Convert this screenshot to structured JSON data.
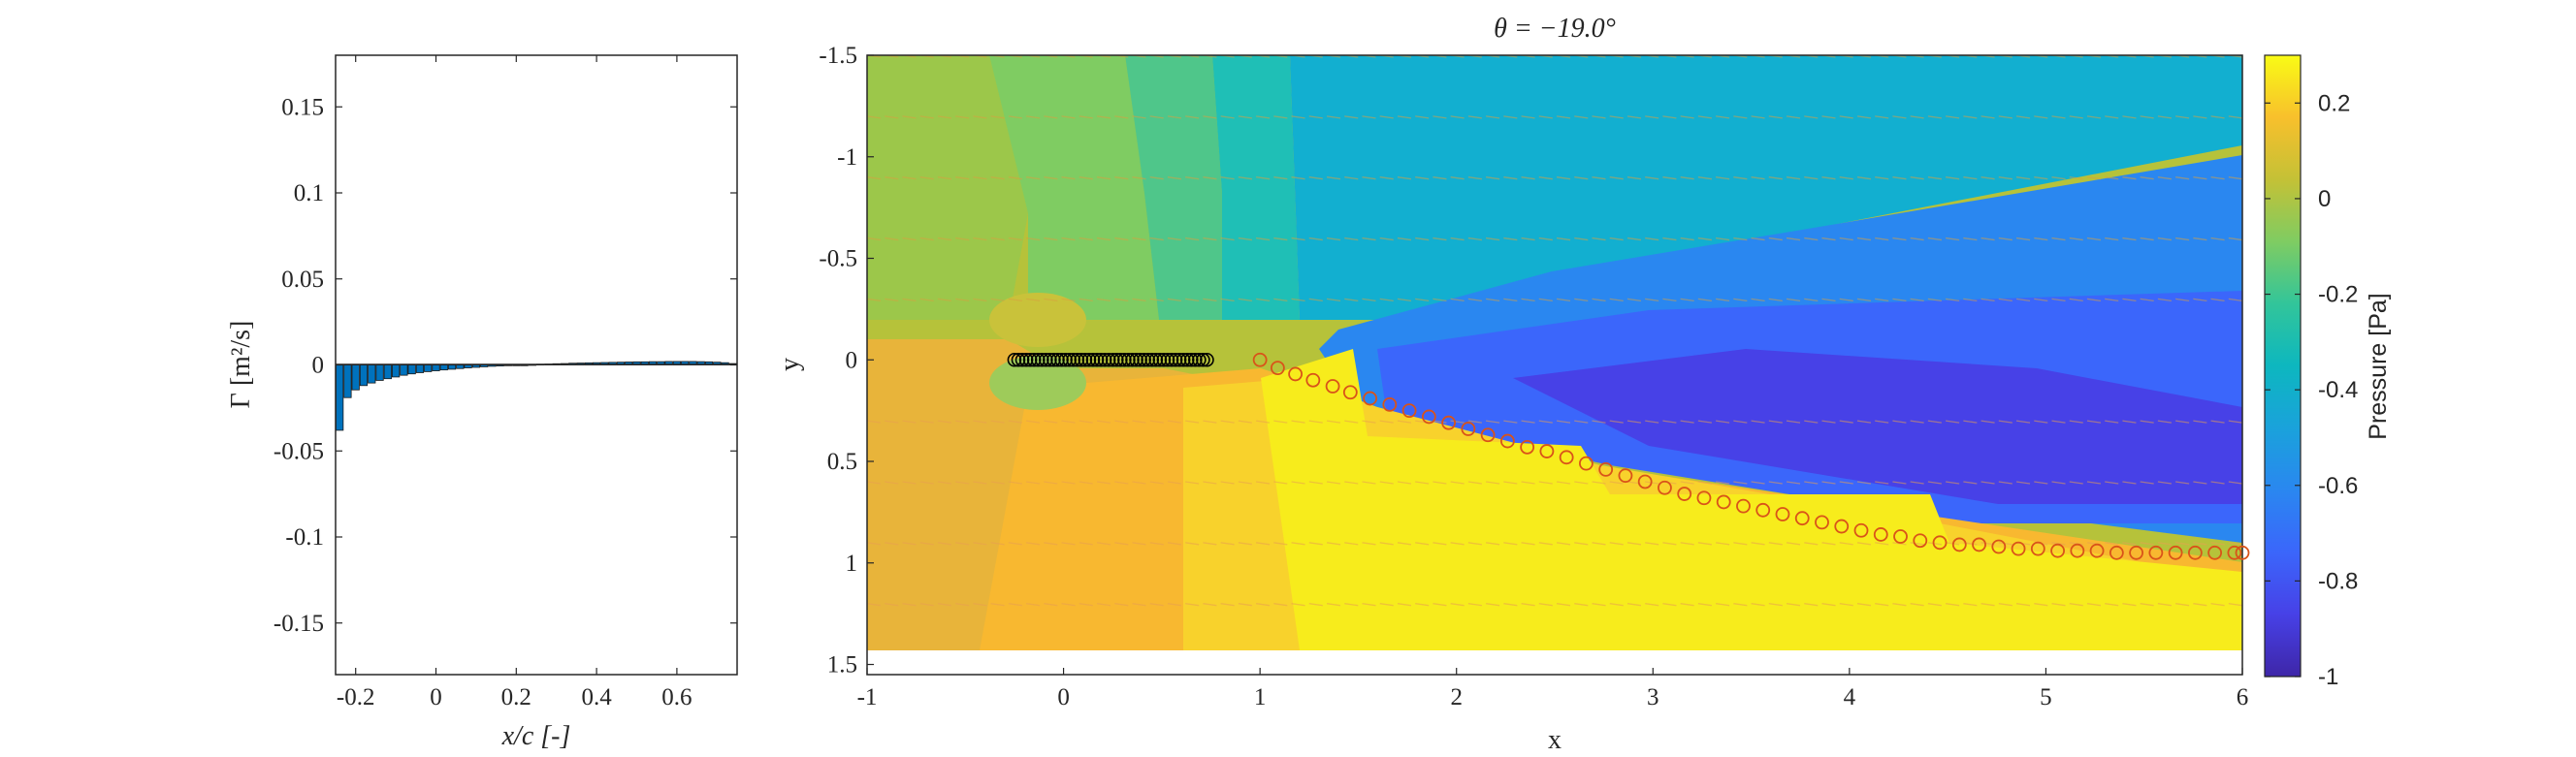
{
  "chart_data": [
    {
      "type": "bar",
      "xlabel": "x/c [-]",
      "ylabel": "Γ [m²/s]",
      "xlim": [
        -0.25,
        0.75
      ],
      "ylim": [
        -0.18,
        0.18
      ],
      "xticks": [
        "-0.2",
        "0",
        "0.2",
        "0.4",
        "0.6"
      ],
      "xtick_values": [
        -0.2,
        0,
        0.2,
        0.4,
        0.6
      ],
      "yticks": [
        "-0.15",
        "-0.1",
        "-0.05",
        "0",
        "0.05",
        "0.1",
        "0.15"
      ],
      "ytick_values": [
        -0.15,
        -0.1,
        -0.05,
        0,
        0.05,
        0.1,
        0.15
      ],
      "bar_color": "#0072BD",
      "x": [
        -0.24,
        -0.22,
        -0.2,
        -0.18,
        -0.16,
        -0.14,
        -0.12,
        -0.1,
        -0.08,
        -0.06,
        -0.04,
        -0.02,
        0.0,
        0.02,
        0.04,
        0.06,
        0.08,
        0.1,
        0.12,
        0.14,
        0.16,
        0.18,
        0.2,
        0.22,
        0.24,
        0.26,
        0.28,
        0.3,
        0.32,
        0.34,
        0.36,
        0.38,
        0.4,
        0.42,
        0.44,
        0.46,
        0.48,
        0.5,
        0.52,
        0.54,
        0.56,
        0.58,
        0.6,
        0.62,
        0.64,
        0.66,
        0.68,
        0.7,
        0.72,
        0.74
      ],
      "values": [
        -0.038,
        -0.019,
        -0.0145,
        -0.012,
        -0.0105,
        -0.009,
        -0.008,
        -0.007,
        -0.006,
        -0.0052,
        -0.0045,
        -0.0039,
        -0.0034,
        -0.0029,
        -0.0025,
        -0.0021,
        -0.0017,
        -0.0014,
        -0.0011,
        -0.0008,
        -0.0006,
        -0.0004,
        -0.0002,
        0.0,
        0.0002,
        0.0004,
        0.0005,
        0.0007,
        0.0008,
        0.001,
        0.0011,
        0.0012,
        0.0013,
        0.0014,
        0.0015,
        0.0016,
        0.0017,
        0.0018,
        0.0018,
        0.0019,
        0.0019,
        0.002,
        0.002,
        0.002,
        0.002,
        0.0019,
        0.0018,
        0.0016,
        0.0013,
        0.0008
      ]
    },
    {
      "type": "heatmap",
      "title": "θ = −19.0°",
      "xlabel": "x",
      "ylabel": "y",
      "xlim": [
        -1,
        6
      ],
      "ylim": [
        1.55,
        -1.5
      ],
      "y_axis_reversed": true,
      "xticks": [
        "-1",
        "0",
        "1",
        "2",
        "3",
        "4",
        "5",
        "6"
      ],
      "xtick_values": [
        -1,
        0,
        1,
        2,
        3,
        4,
        5,
        6
      ],
      "yticks": [
        "-1.5",
        "-1",
        "-0.5",
        "0",
        "0.5",
        "1",
        "1.5"
      ],
      "ytick_values": [
        -1.5,
        -1,
        -0.5,
        0,
        0.5,
        1,
        1.5
      ],
      "colorbar": {
        "label": "Pressure [Pa]",
        "range": [
          -1,
          0.3
        ],
        "ticks": [
          "0.2",
          "0",
          "-0.2",
          "-0.4",
          "-0.6",
          "-0.8",
          "-1"
        ],
        "tick_values": [
          0.2,
          0,
          -0.2,
          -0.4,
          -0.6,
          -0.8,
          -1
        ],
        "colormap": "parula"
      },
      "plate_points": {
        "color": "#000000",
        "x": [
          -0.25,
          -0.23,
          -0.21,
          -0.19,
          -0.17,
          -0.15,
          -0.13,
          -0.11,
          -0.09,
          -0.07,
          -0.05,
          -0.03,
          -0.01,
          0.01,
          0.03,
          0.05,
          0.07,
          0.09,
          0.11,
          0.13,
          0.15,
          0.17,
          0.19,
          0.21,
          0.23,
          0.25,
          0.27,
          0.29,
          0.31,
          0.33,
          0.35,
          0.37,
          0.39,
          0.41,
          0.43,
          0.45,
          0.47,
          0.49,
          0.51,
          0.53,
          0.55,
          0.57,
          0.59,
          0.61,
          0.63,
          0.65,
          0.67,
          0.69,
          0.71,
          0.73
        ],
        "y": 0.0
      },
      "wake_points": {
        "color": "#D95319",
        "x": [
          1.0,
          1.09,
          1.18,
          1.27,
          1.37,
          1.46,
          1.56,
          1.66,
          1.76,
          1.86,
          1.96,
          2.06,
          2.16,
          2.26,
          2.36,
          2.46,
          2.56,
          2.66,
          2.76,
          2.86,
          2.96,
          3.06,
          3.16,
          3.26,
          3.36,
          3.46,
          3.56,
          3.66,
          3.76,
          3.86,
          3.96,
          4.06,
          4.16,
          4.26,
          4.36,
          4.46,
          4.56,
          4.66,
          4.76,
          4.86,
          4.96,
          5.06,
          5.16,
          5.26,
          5.36,
          5.46,
          5.56,
          5.66,
          5.76,
          5.86,
          5.96,
          6.0
        ],
        "y": [
          0.0,
          0.04,
          0.07,
          0.1,
          0.13,
          0.16,
          0.19,
          0.22,
          0.25,
          0.28,
          0.31,
          0.34,
          0.37,
          0.4,
          0.43,
          0.45,
          0.48,
          0.51,
          0.54,
          0.57,
          0.6,
          0.63,
          0.66,
          0.68,
          0.7,
          0.72,
          0.74,
          0.76,
          0.78,
          0.8,
          0.82,
          0.84,
          0.86,
          0.87,
          0.89,
          0.9,
          0.91,
          0.91,
          0.92,
          0.93,
          0.93,
          0.94,
          0.94,
          0.94,
          0.95,
          0.95,
          0.95,
          0.95,
          0.95,
          0.95,
          0.95,
          0.95
        ]
      }
    }
  ]
}
